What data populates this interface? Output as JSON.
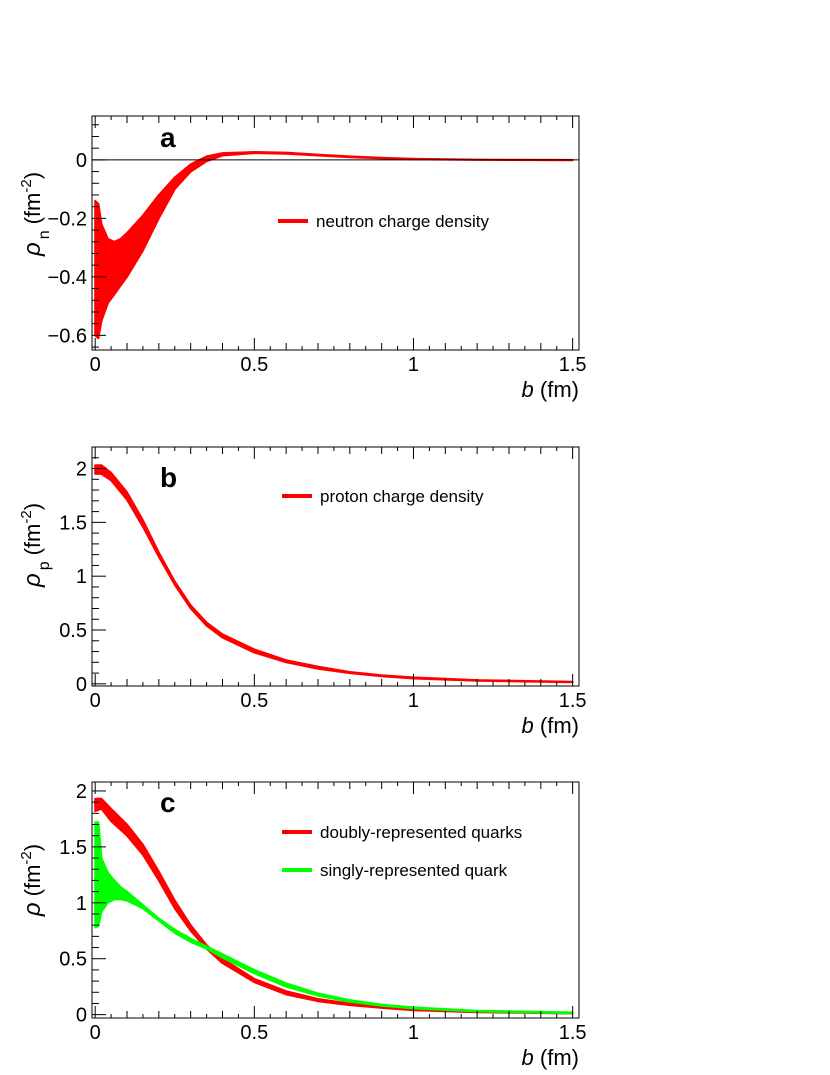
{
  "chart_data": [
    {
      "type": "area",
      "panel_label": "a",
      "ylabel": {
        "symbol": "ρ",
        "subscript": "n",
        "unit_open": "(fm",
        "unit_sup": "-2",
        "unit_close": ")"
      },
      "xlabel": {
        "symbol": "b",
        "unit": "(fm)"
      },
      "xlim": [
        -0.01,
        1.52
      ],
      "ylim": [
        -0.65,
        0.15
      ],
      "xticks": [
        0,
        0.5,
        1,
        1.5
      ],
      "xtick_labels": [
        "0",
        "0.5",
        "1",
        "1.5"
      ],
      "yticks": [
        -0.6,
        -0.4,
        -0.2,
        0
      ],
      "ytick_labels": [
        "−0.6",
        "−0.4",
        "−0.2",
        "0"
      ],
      "zero_line": true,
      "legend_position": "right",
      "series": [
        {
          "name": "neutron charge density",
          "color": "#ff0000",
          "x": [
            0.0,
            0.01,
            0.02,
            0.04,
            0.06,
            0.08,
            0.1,
            0.15,
            0.2,
            0.25,
            0.3,
            0.35,
            0.4,
            0.5,
            0.6,
            0.7,
            0.8,
            0.9,
            1.0,
            1.2,
            1.5
          ],
          "upper": [
            -0.14,
            -0.15,
            -0.22,
            -0.27,
            -0.28,
            -0.27,
            -0.25,
            -0.19,
            -0.12,
            -0.06,
            -0.015,
            0.012,
            0.023,
            0.027,
            0.025,
            0.018,
            0.012,
            0.007,
            0.004,
            0.001,
            0.0
          ],
          "lower": [
            -0.6,
            -0.61,
            -0.55,
            -0.49,
            -0.46,
            -0.43,
            -0.4,
            -0.31,
            -0.2,
            -0.1,
            -0.04,
            -0.005,
            0.015,
            0.023,
            0.021,
            0.015,
            0.009,
            0.005,
            0.002,
            0.0,
            -0.001
          ]
        }
      ]
    },
    {
      "type": "area",
      "panel_label": "b",
      "ylabel": {
        "symbol": "ρ",
        "subscript": "p",
        "unit_open": "(fm",
        "unit_sup": "-2",
        "unit_close": ")"
      },
      "xlabel": {
        "symbol": "b",
        "unit": "(fm)"
      },
      "xlim": [
        -0.01,
        1.52
      ],
      "ylim": [
        -0.02,
        2.2
      ],
      "xticks": [
        0,
        0.5,
        1,
        1.5
      ],
      "xtick_labels": [
        "0",
        "0.5",
        "1",
        "1.5"
      ],
      "yticks": [
        0,
        0.5,
        1,
        1.5,
        2
      ],
      "ytick_labels": [
        "0",
        "0.5",
        "1",
        "1.5",
        "2"
      ],
      "zero_line": false,
      "legend_position": "top-right",
      "series": [
        {
          "name": "proton charge density",
          "color": "#ff0000",
          "x": [
            0.0,
            0.02,
            0.05,
            0.1,
            0.15,
            0.2,
            0.25,
            0.3,
            0.35,
            0.4,
            0.5,
            0.6,
            0.7,
            0.8,
            0.9,
            1.0,
            1.2,
            1.5
          ],
          "upper": [
            2.03,
            2.03,
            1.96,
            1.78,
            1.52,
            1.22,
            0.95,
            0.73,
            0.57,
            0.46,
            0.32,
            0.22,
            0.16,
            0.11,
            0.08,
            0.06,
            0.035,
            0.02
          ],
          "lower": [
            1.95,
            1.95,
            1.89,
            1.71,
            1.46,
            1.18,
            0.92,
            0.7,
            0.54,
            0.43,
            0.29,
            0.2,
            0.14,
            0.1,
            0.07,
            0.05,
            0.028,
            0.015
          ]
        }
      ]
    },
    {
      "type": "area",
      "panel_label": "c",
      "ylabel": {
        "symbol": "ρ",
        "subscript": "",
        "unit_open": "(fm",
        "unit_sup": "-2",
        "unit_close": ")"
      },
      "xlabel": {
        "symbol": "b",
        "unit": "(fm)"
      },
      "xlim": [
        -0.01,
        1.52
      ],
      "ylim": [
        -0.03,
        2.08
      ],
      "xticks": [
        0,
        0.5,
        1,
        1.5
      ],
      "xtick_labels": [
        "0",
        "0.5",
        "1",
        "1.5"
      ],
      "yticks": [
        0,
        0.5,
        1,
        1.5,
        2
      ],
      "ytick_labels": [
        "0",
        "0.5",
        "1",
        "1.5",
        "2"
      ],
      "zero_line": false,
      "legend_position": "top-right",
      "series": [
        {
          "name": "doubly-represented quarks",
          "color": "#ff0000",
          "x": [
            0.0,
            0.02,
            0.05,
            0.1,
            0.15,
            0.2,
            0.25,
            0.3,
            0.35,
            0.4,
            0.5,
            0.6,
            0.7,
            0.8,
            0.9,
            1.0,
            1.2,
            1.5
          ],
          "upper": [
            1.93,
            1.93,
            1.84,
            1.7,
            1.52,
            1.28,
            1.02,
            0.8,
            0.62,
            0.5,
            0.32,
            0.21,
            0.14,
            0.1,
            0.07,
            0.05,
            0.028,
            0.015
          ],
          "lower": [
            1.82,
            1.84,
            1.73,
            1.6,
            1.43,
            1.2,
            0.95,
            0.75,
            0.59,
            0.46,
            0.29,
            0.18,
            0.12,
            0.085,
            0.06,
            0.04,
            0.022,
            0.01
          ]
        },
        {
          "name": "singly-represented quark",
          "color": "#00ff00",
          "x": [
            0.0,
            0.01,
            0.02,
            0.04,
            0.06,
            0.08,
            0.1,
            0.15,
            0.2,
            0.25,
            0.3,
            0.35,
            0.4,
            0.5,
            0.6,
            0.7,
            0.8,
            0.9,
            1.0,
            1.2,
            1.5
          ],
          "upper": [
            1.72,
            1.72,
            1.4,
            1.27,
            1.2,
            1.14,
            1.1,
            0.98,
            0.86,
            0.76,
            0.68,
            0.61,
            0.54,
            0.4,
            0.28,
            0.19,
            0.13,
            0.09,
            0.065,
            0.035,
            0.02
          ],
          "lower": [
            0.78,
            0.79,
            0.92,
            1.0,
            1.03,
            1.03,
            1.02,
            0.95,
            0.84,
            0.73,
            0.65,
            0.59,
            0.51,
            0.37,
            0.25,
            0.17,
            0.115,
            0.08,
            0.055,
            0.028,
            0.012
          ]
        }
      ]
    }
  ]
}
